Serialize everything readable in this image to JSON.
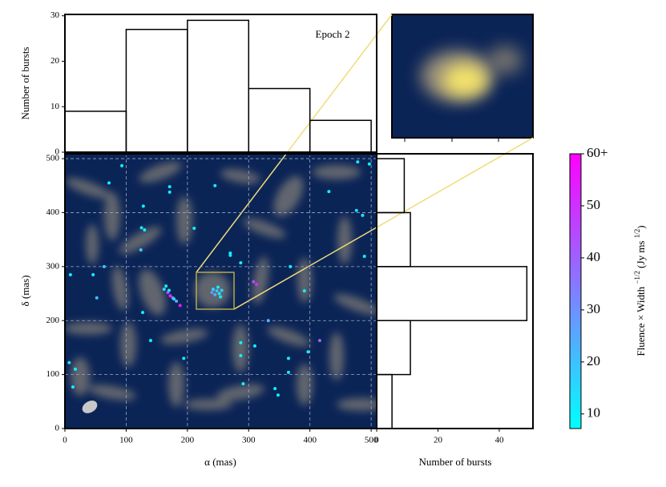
{
  "chart_data": [
    {
      "type": "scatter",
      "xlabel": "α (mas)",
      "ylabel": "δ (mas)",
      "xlim": [
        0,
        509
      ],
      "ylim": [
        0,
        509
      ],
      "xticks": [
        0,
        100,
        200,
        300,
        400,
        500
      ],
      "yticks": [
        0,
        100,
        200,
        300,
        400,
        500
      ],
      "grid": true,
      "x": [
        93,
        72,
        171,
        171,
        245,
        478,
        497,
        431,
        476,
        486,
        489,
        128,
        125,
        130,
        211,
        64,
        124,
        9,
        46,
        52,
        270,
        270,
        287,
        368,
        308,
        313,
        391,
        332,
        127,
        140,
        194,
        287,
        287,
        310,
        365,
        416,
        365,
        397,
        7,
        17,
        13,
        291,
        343,
        348,
        165,
        162,
        168,
        172,
        176,
        182,
        188,
        170,
        178,
        242,
        248,
        252,
        245,
        250,
        256,
        240,
        254
      ],
      "y": [
        487,
        455,
        448,
        438,
        450,
        494,
        490,
        439,
        404,
        395,
        319,
        412,
        372,
        368,
        371,
        300,
        331,
        285,
        285,
        242,
        325,
        321,
        307,
        300,
        272,
        267,
        255,
        200,
        215,
        163,
        130,
        135,
        159,
        153,
        130,
        163,
        104,
        142,
        122,
        110,
        77,
        83,
        74,
        62,
        264,
        258,
        252,
        246,
        242,
        236,
        228,
        256,
        240,
        258,
        255,
        250,
        248,
        262,
        256,
        252,
        244
      ],
      "color_values": [
        10,
        10,
        10,
        10,
        12,
        12,
        10,
        10,
        15,
        12,
        10,
        10,
        12,
        10,
        10,
        20,
        18,
        10,
        10,
        20,
        10,
        12,
        10,
        10,
        45,
        50,
        10,
        22,
        10,
        10,
        10,
        10,
        10,
        10,
        10,
        40,
        10,
        10,
        12,
        10,
        10,
        10,
        10,
        10,
        12,
        14,
        45,
        50,
        35,
        25,
        55,
        12,
        15,
        15,
        20,
        12,
        25,
        10,
        18,
        30,
        12
      ],
      "colorbar": {
        "label": [
          "Fluence × Width ",
          "−1/2",
          " (Jy ms ",
          "1/2",
          ")"
        ],
        "lim": [
          7.2,
          60
        ],
        "ticks": [
          10,
          20,
          30,
          40,
          50,
          {
            "value": 60,
            "label": "60+"
          }
        ],
        "colors": [
          "#00ffff",
          "#ff00ff"
        ]
      }
    },
    {
      "type": "histogram",
      "text": "Epoch 2",
      "ylabel": "Number of bursts",
      "bins": [
        0,
        100,
        200,
        300,
        400,
        500
      ],
      "values": [
        9,
        27,
        29,
        14,
        7
      ],
      "ylim": [
        0,
        30.3
      ],
      "yticks": [
        0,
        10,
        20,
        30
      ]
    },
    {
      "type": "histogram-horizontal",
      "xlabel": "Number of bursts",
      "bins": [
        0,
        100,
        200,
        300,
        400,
        500
      ],
      "values": [
        5,
        11,
        49,
        11,
        9
      ],
      "xlim": [
        0,
        51
      ],
      "xticks": [
        0,
        20,
        40
      ]
    }
  ]
}
